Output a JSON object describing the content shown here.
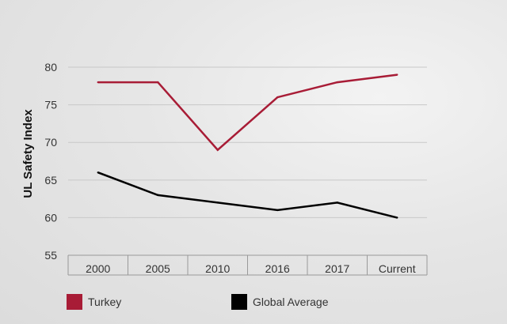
{
  "chart_data": {
    "type": "line",
    "title": "",
    "xlabel": "",
    "ylabel": "UL Safety Index",
    "categories": [
      "2000",
      "2005",
      "2010",
      "2016",
      "2017",
      "Current"
    ],
    "yticks": [
      55,
      60,
      65,
      70,
      75,
      80
    ],
    "ylim": [
      55,
      82
    ],
    "grid": true,
    "legend_position": "bottom",
    "series": [
      {
        "name": "Turkey",
        "color": "#a81c36",
        "values": [
          78,
          78,
          69,
          76,
          78,
          79
        ]
      },
      {
        "name": "Global Average",
        "color": "#000000",
        "values": [
          66,
          63,
          62,
          61,
          62,
          60
        ]
      }
    ]
  }
}
